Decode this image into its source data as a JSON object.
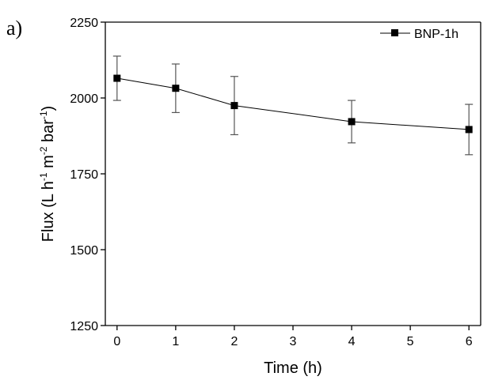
{
  "panel_label": "a)",
  "chart_data": {
    "type": "line",
    "xlabel": "Time (h)",
    "ylabel": {
      "parts": [
        "Flux (L h",
        "-1",
        " m",
        "-2",
        " bar",
        "-1",
        ")"
      ]
    },
    "xlim": [
      -0.2,
      6.2
    ],
    "ylim": [
      1250,
      2250
    ],
    "x_ticks": [
      0,
      1,
      2,
      3,
      4,
      5,
      6
    ],
    "y_ticks": [
      1250,
      1500,
      1750,
      2000,
      2250
    ],
    "legend_position": "top-right",
    "series": [
      {
        "name": "BNP-1h",
        "x": [
          0,
          1,
          2,
          4,
          6
        ],
        "y": [
          2065,
          2032,
          1975,
          1922,
          1896
        ],
        "error": [
          73,
          80,
          96,
          70,
          83
        ]
      }
    ]
  }
}
